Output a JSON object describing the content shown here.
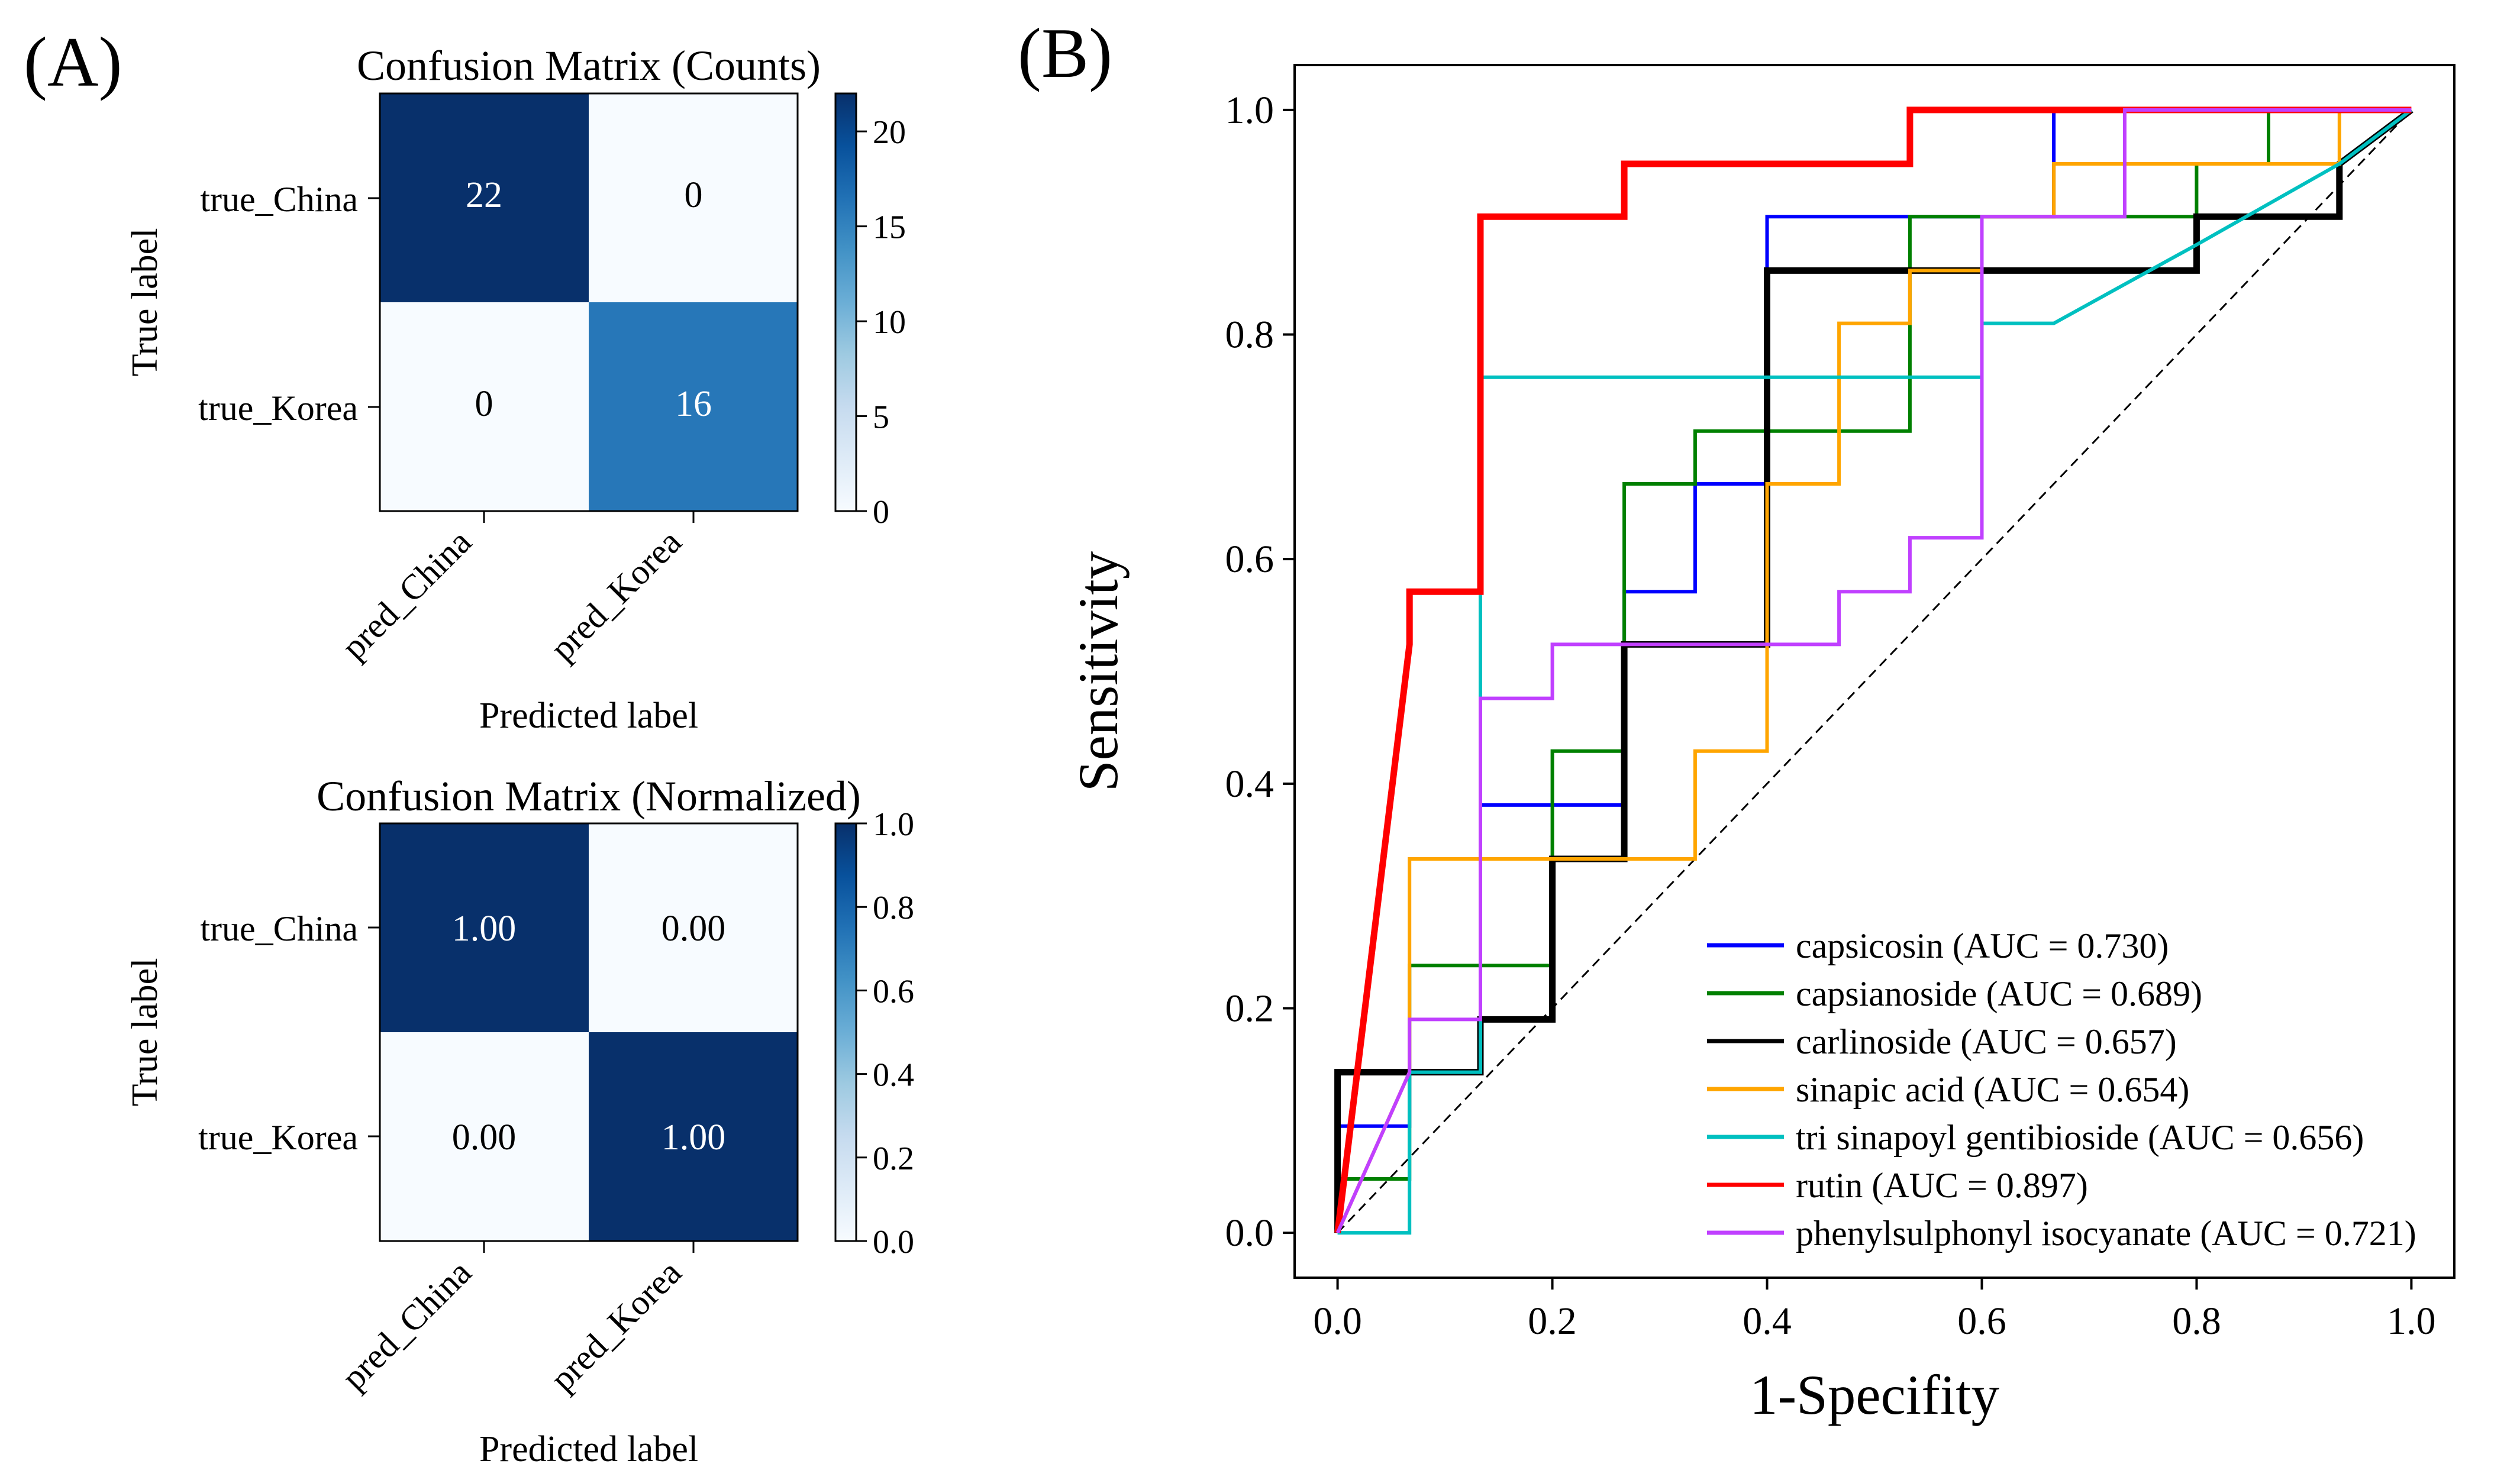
{
  "panels": {
    "a_label": "(A)",
    "b_label": "(B)"
  },
  "chart_data": [
    {
      "type": "heatmap",
      "title": "Confusion Matrix (Counts)",
      "xlabel": "Predicted label",
      "ylabel": "True label",
      "x_categories": [
        "pred_China",
        "pred_Korea"
      ],
      "y_categories": [
        "true_China",
        "true_Korea"
      ],
      "values": [
        [
          22,
          0
        ],
        [
          0,
          16
        ]
      ],
      "cell_text": [
        [
          "22",
          "0"
        ],
        [
          "0",
          "16"
        ]
      ],
      "colorbar": {
        "min": 0,
        "max": 22,
        "ticks": [
          0,
          5,
          10,
          15,
          20
        ],
        "tick_labels": [
          "0",
          "5",
          "10",
          "15",
          "20"
        ],
        "colormap": "Blues"
      }
    },
    {
      "type": "heatmap",
      "title": "Confusion Matrix (Normalized)",
      "xlabel": "Predicted label",
      "ylabel": "True label",
      "x_categories": [
        "pred_China",
        "pred_Korea"
      ],
      "y_categories": [
        "true_China",
        "true_Korea"
      ],
      "values": [
        [
          1.0,
          0.0
        ],
        [
          0.0,
          1.0
        ]
      ],
      "cell_text": [
        [
          "1.00",
          "0.00"
        ],
        [
          "0.00",
          "1.00"
        ]
      ],
      "colorbar": {
        "min": 0,
        "max": 1,
        "ticks": [
          0,
          0.2,
          0.4,
          0.6,
          0.8,
          1.0
        ],
        "tick_labels": [
          "0.0",
          "0.2",
          "0.4",
          "0.6",
          "0.8",
          "1.0"
        ],
        "colormap": "Blues"
      }
    },
    {
      "type": "line",
      "title": "",
      "xlabel": "1-Specifity",
      "ylabel": "Sensitivity",
      "xlim": [
        -0.04,
        1.04
      ],
      "ylim": [
        -0.04,
        1.04
      ],
      "xticks": [
        0,
        0.2,
        0.4,
        0.6,
        0.8,
        1.0
      ],
      "xtick_labels": [
        "0.0",
        "0.2",
        "0.4",
        "0.6",
        "0.8",
        "1.0"
      ],
      "yticks": [
        0,
        0.2,
        0.4,
        0.6,
        0.8,
        1.0
      ],
      "ytick_labels": [
        "0.0",
        "0.2",
        "0.4",
        "0.6",
        "0.8",
        "1.0"
      ],
      "legend_position": "lower-right",
      "reference_line": {
        "x": [
          0,
          1
        ],
        "y": [
          0,
          1
        ],
        "style": "dashed",
        "color": "#000000"
      },
      "series": [
        {
          "name": "capsicosin (AUC = 0.730)",
          "color": "#0000ff",
          "width": "normal",
          "points": [
            [
              0,
              0
            ],
            [
              0,
              0.095
            ],
            [
              0.067,
              0.095
            ],
            [
              0.067,
              0.143
            ],
            [
              0.133,
              0.143
            ],
            [
              0.133,
              0.381
            ],
            [
              0.267,
              0.381
            ],
            [
              0.267,
              0.571
            ],
            [
              0.333,
              0.571
            ],
            [
              0.333,
              0.667
            ],
            [
              0.4,
              0.667
            ],
            [
              0.4,
              0.905
            ],
            [
              0.667,
              0.905
            ],
            [
              0.667,
              1.0
            ],
            [
              1.0,
              1.0
            ]
          ]
        },
        {
          "name": "capsianoside (AUC = 0.689)",
          "color": "#008000",
          "width": "normal",
          "points": [
            [
              0,
              0
            ],
            [
              0,
              0.048
            ],
            [
              0.067,
              0.048
            ],
            [
              0.067,
              0.238
            ],
            [
              0.2,
              0.238
            ],
            [
              0.2,
              0.429
            ],
            [
              0.267,
              0.429
            ],
            [
              0.267,
              0.667
            ],
            [
              0.333,
              0.667
            ],
            [
              0.333,
              0.714
            ],
            [
              0.533,
              0.714
            ],
            [
              0.533,
              0.905
            ],
            [
              0.8,
              0.905
            ],
            [
              0.8,
              0.952
            ],
            [
              0.867,
              0.952
            ],
            [
              0.867,
              1.0
            ],
            [
              1.0,
              1.0
            ]
          ]
        },
        {
          "name": "carlinoside (AUC = 0.657)",
          "color": "#000000",
          "width": "thick",
          "points": [
            [
              0,
              0
            ],
            [
              0,
              0.143
            ],
            [
              0.067,
              0.143
            ],
            [
              0.067,
              0.143
            ],
            [
              0.133,
              0.143
            ],
            [
              0.133,
              0.19
            ],
            [
              0.2,
              0.19
            ],
            [
              0.2,
              0.333
            ],
            [
              0.267,
              0.333
            ],
            [
              0.267,
              0.524
            ],
            [
              0.4,
              0.524
            ],
            [
              0.4,
              0.857
            ],
            [
              0.8,
              0.857
            ],
            [
              0.8,
              0.905
            ],
            [
              0.933,
              0.905
            ],
            [
              0.933,
              0.952
            ],
            [
              1.0,
              1.0
            ]
          ]
        },
        {
          "name": "sinapic acid (AUC = 0.654)",
          "color": "#ffa500",
          "width": "normal",
          "points": [
            [
              0,
              0
            ],
            [
              0.067,
              0.143
            ],
            [
              0.067,
              0.333
            ],
            [
              0.333,
              0.333
            ],
            [
              0.333,
              0.429
            ],
            [
              0.4,
              0.429
            ],
            [
              0.4,
              0.667
            ],
            [
              0.467,
              0.667
            ],
            [
              0.467,
              0.81
            ],
            [
              0.533,
              0.81
            ],
            [
              0.533,
              0.857
            ],
            [
              0.6,
              0.857
            ],
            [
              0.6,
              0.905
            ],
            [
              0.667,
              0.905
            ],
            [
              0.667,
              0.952
            ],
            [
              0.933,
              0.952
            ],
            [
              0.933,
              1.0
            ],
            [
              1.0,
              1.0
            ]
          ]
        },
        {
          "name": "tri sinapoyl gentibioside (AUC = 0.656)",
          "color": "#00c0c0",
          "width": "normal",
          "points": [
            [
              0,
              0
            ],
            [
              0.067,
              0
            ],
            [
              0.067,
              0.143
            ],
            [
              0.133,
              0.143
            ],
            [
              0.133,
              0.762
            ],
            [
              0.6,
              0.762
            ],
            [
              0.6,
              0.81
            ],
            [
              0.667,
              0.81
            ],
            [
              0.8,
              0.88
            ],
            [
              0.933,
              0.952
            ],
            [
              1.0,
              1.0
            ]
          ]
        },
        {
          "name": "rutin (AUC = 0.897)",
          "color": "#ff0000",
          "width": "thick",
          "points": [
            [
              0,
              0
            ],
            [
              0.067,
              0.524
            ],
            [
              0.067,
              0.571
            ],
            [
              0.133,
              0.571
            ],
            [
              0.133,
              0.905
            ],
            [
              0.267,
              0.905
            ],
            [
              0.267,
              0.952
            ],
            [
              0.533,
              0.952
            ],
            [
              0.533,
              1.0
            ],
            [
              1.0,
              1.0
            ]
          ]
        },
        {
          "name": "phenylsulphonyl isocyanate (AUC = 0.721)",
          "color": "#c040ff",
          "width": "normal",
          "points": [
            [
              0,
              0
            ],
            [
              0.067,
              0.143
            ],
            [
              0.067,
              0.19
            ],
            [
              0.133,
              0.19
            ],
            [
              0.133,
              0.476
            ],
            [
              0.2,
              0.476
            ],
            [
              0.2,
              0.524
            ],
            [
              0.467,
              0.524
            ],
            [
              0.467,
              0.571
            ],
            [
              0.533,
              0.571
            ],
            [
              0.533,
              0.619
            ],
            [
              0.6,
              0.619
            ],
            [
              0.6,
              0.905
            ],
            [
              0.733,
              0.905
            ],
            [
              0.733,
              1.0
            ],
            [
              1.0,
              1.0
            ]
          ]
        }
      ]
    }
  ]
}
